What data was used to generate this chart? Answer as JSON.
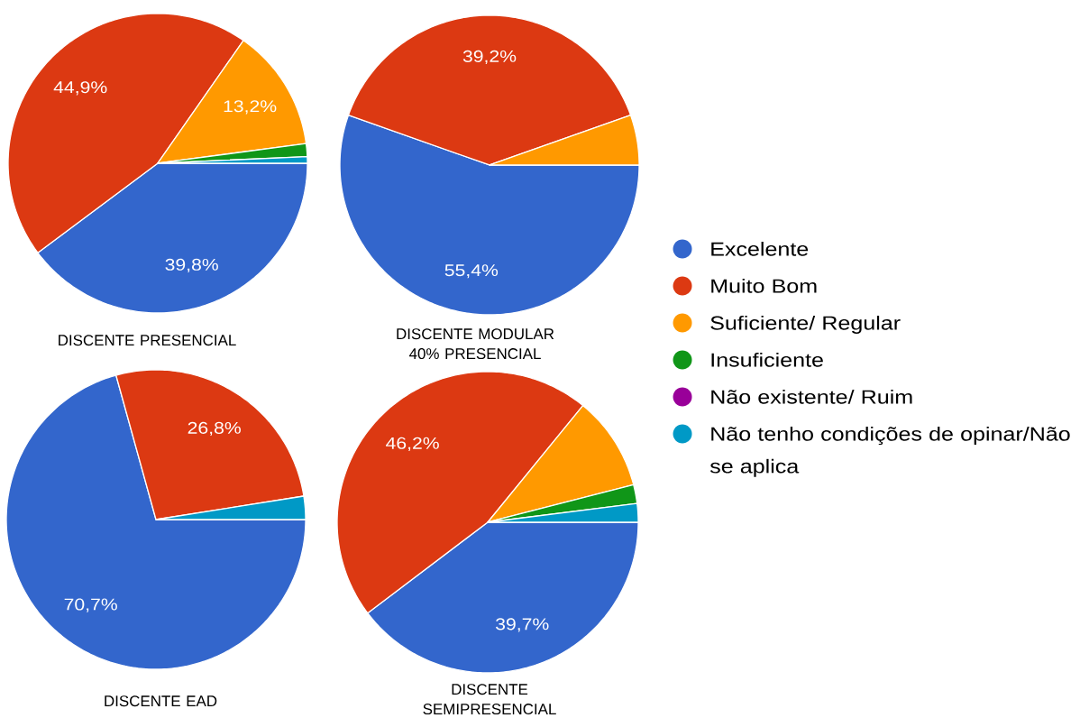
{
  "chart_data": {
    "type": "pie",
    "categories": [
      "Excelente",
      "Muito Bom",
      "Suficiente/ Regular",
      "Insuficiente",
      "Não existente/ Ruim",
      "Não tenho condições de opinar/Não se aplica"
    ],
    "colors": [
      "#3366cc",
      "#dc3912",
      "#ff9900",
      "#109618",
      "#990099",
      "#0099c6"
    ],
    "legend": "right",
    "series": [
      {
        "name": "DISCENTE PRESENCIAL",
        "values": [
          39.8,
          44.9,
          13.2,
          1.4,
          0,
          0.7
        ],
        "value_labels": [
          "39,8%",
          "44,9%",
          "13,2%",
          null,
          null,
          null
        ]
      },
      {
        "name": "DISCENTE MODULAR 40% PRESENCIAL",
        "values": [
          55.4,
          39.2,
          5.4,
          0,
          0,
          0
        ],
        "value_labels": [
          "55,4%",
          "39,2%",
          null,
          null,
          null,
          null
        ]
      },
      {
        "name": "DISCENTE EAD",
        "values": [
          70.7,
          26.8,
          0,
          0,
          0,
          2.5
        ],
        "value_labels": [
          "70,7%",
          "26,8%",
          null,
          null,
          null,
          null
        ]
      },
      {
        "name": "DISCENTE SEMIPRESENCIAL",
        "values": [
          39.7,
          46.2,
          10.1,
          2.0,
          0,
          2.0
        ],
        "value_labels": [
          "39,7%",
          "46,2%",
          null,
          null,
          null,
          null
        ]
      }
    ]
  }
}
